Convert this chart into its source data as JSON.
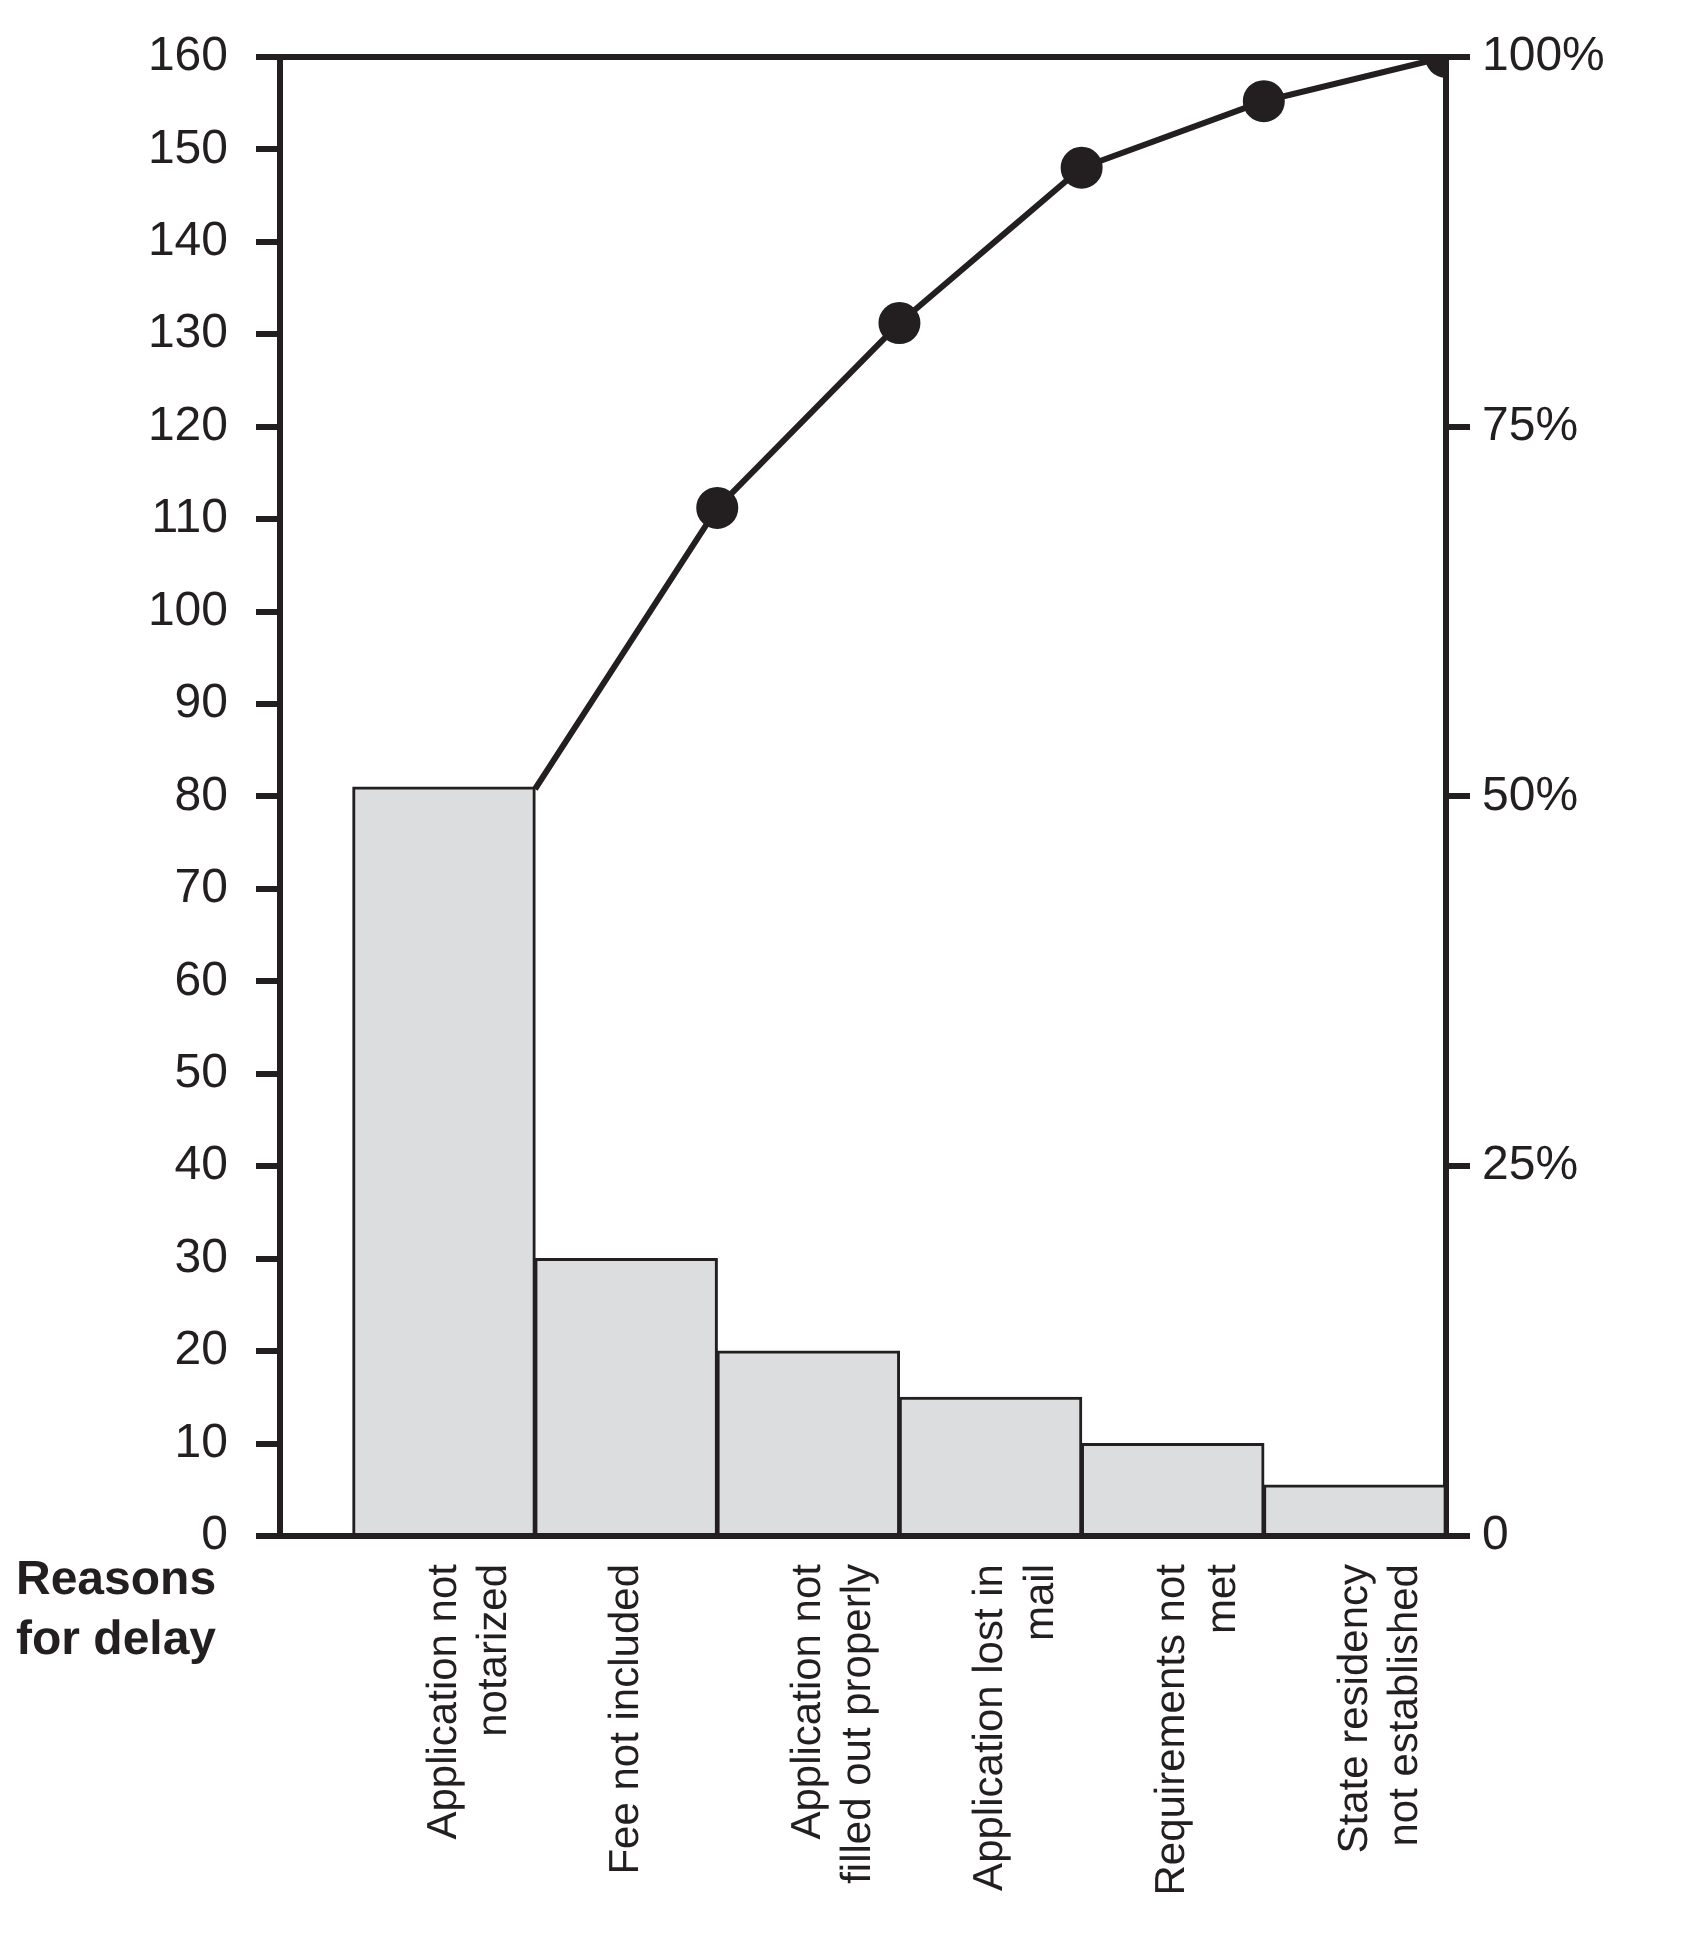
{
  "chart_data": {
    "type": "bar",
    "xlabel": "Reasons for delay",
    "categories": [
      "Application not notarized",
      "Fee not included",
      "Application not filled out properly",
      "Application lost in mail",
      "Requirements not met",
      "State residency not established"
    ],
    "series": [
      {
        "color": "#dcdddf",
        "values": [
          81,
          30,
          20,
          15,
          10,
          5.5
        ]
      },
      {
        "type": "line",
        "axis": "y2",
        "color": "#231f20",
        "marker": "circle",
        "values": [
          50.5,
          69.5,
          82,
          92.5,
          97,
          100
        ]
      }
    ],
    "ylim": [
      0,
      160
    ],
    "yticks": [
      0,
      10,
      20,
      30,
      40,
      50,
      60,
      70,
      80,
      90,
      100,
      110,
      120,
      130,
      140,
      150,
      160
    ],
    "y2lim": [
      0,
      100
    ],
    "y2ticks": [
      0,
      {
        "value": 25,
        "label": "25%"
      },
      {
        "value": 50,
        "label": "50%"
      },
      {
        "value": 75,
        "label": "75%"
      },
      {
        "value": 100,
        "label": "100%"
      }
    ],
    "grid": false,
    "legend": false
  }
}
